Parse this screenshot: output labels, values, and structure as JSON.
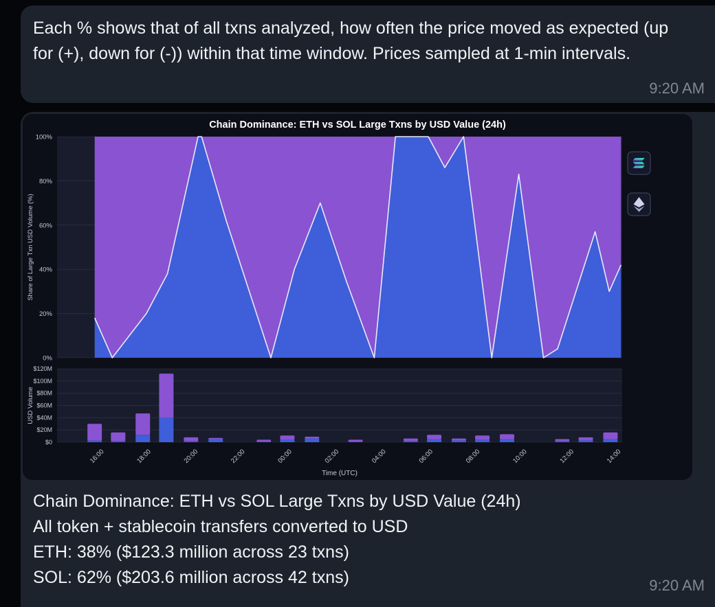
{
  "conversation": {
    "background_color": "#05060a",
    "bubble_color": "#1d232c"
  },
  "messages": {
    "text_message": {
      "body": "Each % shows that of all txns analyzed, how often the price moved as expected (up for (+), down for (-)) within that time window. Prices sampled at 1-min intervals.",
      "time": "9:20 AM"
    },
    "chart_message": {
      "caption_lines": [
        "Chain Dominance: ETH vs SOL Large Txns by USD Value (24h)",
        "All token + stablecoin transfers converted to USD",
        "ETH: 38% ($123.3 million across 23 txns)",
        "SOL: 62% ($203.6 million across 42 txns)"
      ],
      "time": "9:20 AM"
    }
  },
  "chart_data": {
    "type": "area+bar",
    "title": "Chain Dominance: ETH vs SOL Large Txns by USD Value (24h)",
    "x_axis": {
      "label": "Time (UTC)",
      "range_hours": [
        14.0,
        38.05
      ],
      "tick_hours": [
        16,
        18,
        20,
        22,
        24,
        26,
        28,
        30,
        32,
        34,
        36,
        38
      ],
      "tick_labels": [
        "16:00",
        "18:00",
        "20:00",
        "22:00",
        "00:00",
        "02:00",
        "04:00",
        "06:00",
        "08:00",
        "10:00",
        "12:00",
        "14:00"
      ]
    },
    "area_subplot": {
      "ylabel": "Share of Large Txn USD Volume (%)",
      "ylim": [
        0,
        100
      ],
      "ytick_values": [
        0,
        20,
        40,
        60,
        80,
        100
      ],
      "ytick_labels": [
        "0%",
        "20%",
        "40%",
        "60%",
        "80%",
        "100%"
      ],
      "eth_share_points": [
        [
          15.6,
          18
        ],
        [
          16.35,
          0
        ],
        [
          17.8,
          20
        ],
        [
          18.7,
          38
        ],
        [
          20.0,
          100
        ],
        [
          20.15,
          100
        ],
        [
          21.2,
          62
        ],
        [
          23.1,
          0
        ],
        [
          24.1,
          40
        ],
        [
          25.2,
          70
        ],
        [
          26.3,
          35
        ],
        [
          27.5,
          0
        ],
        [
          28.4,
          100
        ],
        [
          29.8,
          100
        ],
        [
          30.5,
          86
        ],
        [
          31.3,
          100
        ],
        [
          32.5,
          0
        ],
        [
          33.65,
          83
        ],
        [
          34.7,
          0
        ],
        [
          35.3,
          4
        ],
        [
          36.9,
          57
        ],
        [
          37.5,
          30
        ],
        [
          38.0,
          42
        ]
      ]
    },
    "bar_subplot": {
      "ylabel": "USD Volume",
      "ylim": [
        0,
        120
      ],
      "ytick_values": [
        0,
        20,
        40,
        60,
        80,
        100,
        120
      ],
      "ytick_labels": [
        "$0",
        "$20M",
        "$40M",
        "$60M",
        "$80M",
        "$100M",
        "$120M"
      ],
      "bars": [
        {
          "t": 15.6,
          "eth": 3,
          "sol": 27
        },
        {
          "t": 16.6,
          "eth": 2,
          "sol": 14
        },
        {
          "t": 17.65,
          "eth": 12,
          "sol": 35
        },
        {
          "t": 18.65,
          "eth": 40,
          "sol": 72
        },
        {
          "t": 19.7,
          "eth": 2,
          "sol": 6
        },
        {
          "t": 20.75,
          "eth": 5,
          "sol": 2
        },
        {
          "t": 22.8,
          "eth": 1,
          "sol": 3
        },
        {
          "t": 23.8,
          "eth": 4,
          "sol": 7
        },
        {
          "t": 24.85,
          "eth": 6,
          "sol": 3
        },
        {
          "t": 26.7,
          "eth": 1,
          "sol": 3
        },
        {
          "t": 29.05,
          "eth": 2,
          "sol": 4
        },
        {
          "t": 30.05,
          "eth": 5,
          "sol": 7
        },
        {
          "t": 31.1,
          "eth": 3,
          "sol": 3
        },
        {
          "t": 32.1,
          "eth": 4,
          "sol": 7
        },
        {
          "t": 33.15,
          "eth": 5,
          "sol": 8
        },
        {
          "t": 35.5,
          "eth": 2,
          "sol": 3
        },
        {
          "t": 36.5,
          "eth": 3,
          "sol": 5
        },
        {
          "t": 37.55,
          "eth": 5,
          "sol": 11
        }
      ]
    },
    "legend": [
      {
        "icon": "solana-icon",
        "series": "SOL"
      },
      {
        "icon": "ethereum-icon",
        "series": "ETH"
      }
    ],
    "colors": {
      "eth": "#3f5ed9",
      "sol": "#8a53d2",
      "line": "#e9e9f7",
      "figure_bg": "#0c0e18",
      "plot_bg": "#181c2c",
      "grid": "rgba(255,255,255,0.07)",
      "tick_text": "#c7cad9",
      "title_text": "#ffffff",
      "legend_box_bg": "#141828",
      "legend_box_border": "#454b66",
      "solana_gradient": [
        "#8752f3",
        "#19fb9b"
      ],
      "eth_icon_top": "#cfd2ec",
      "eth_icon_bottom": "#9da1c6"
    }
  }
}
